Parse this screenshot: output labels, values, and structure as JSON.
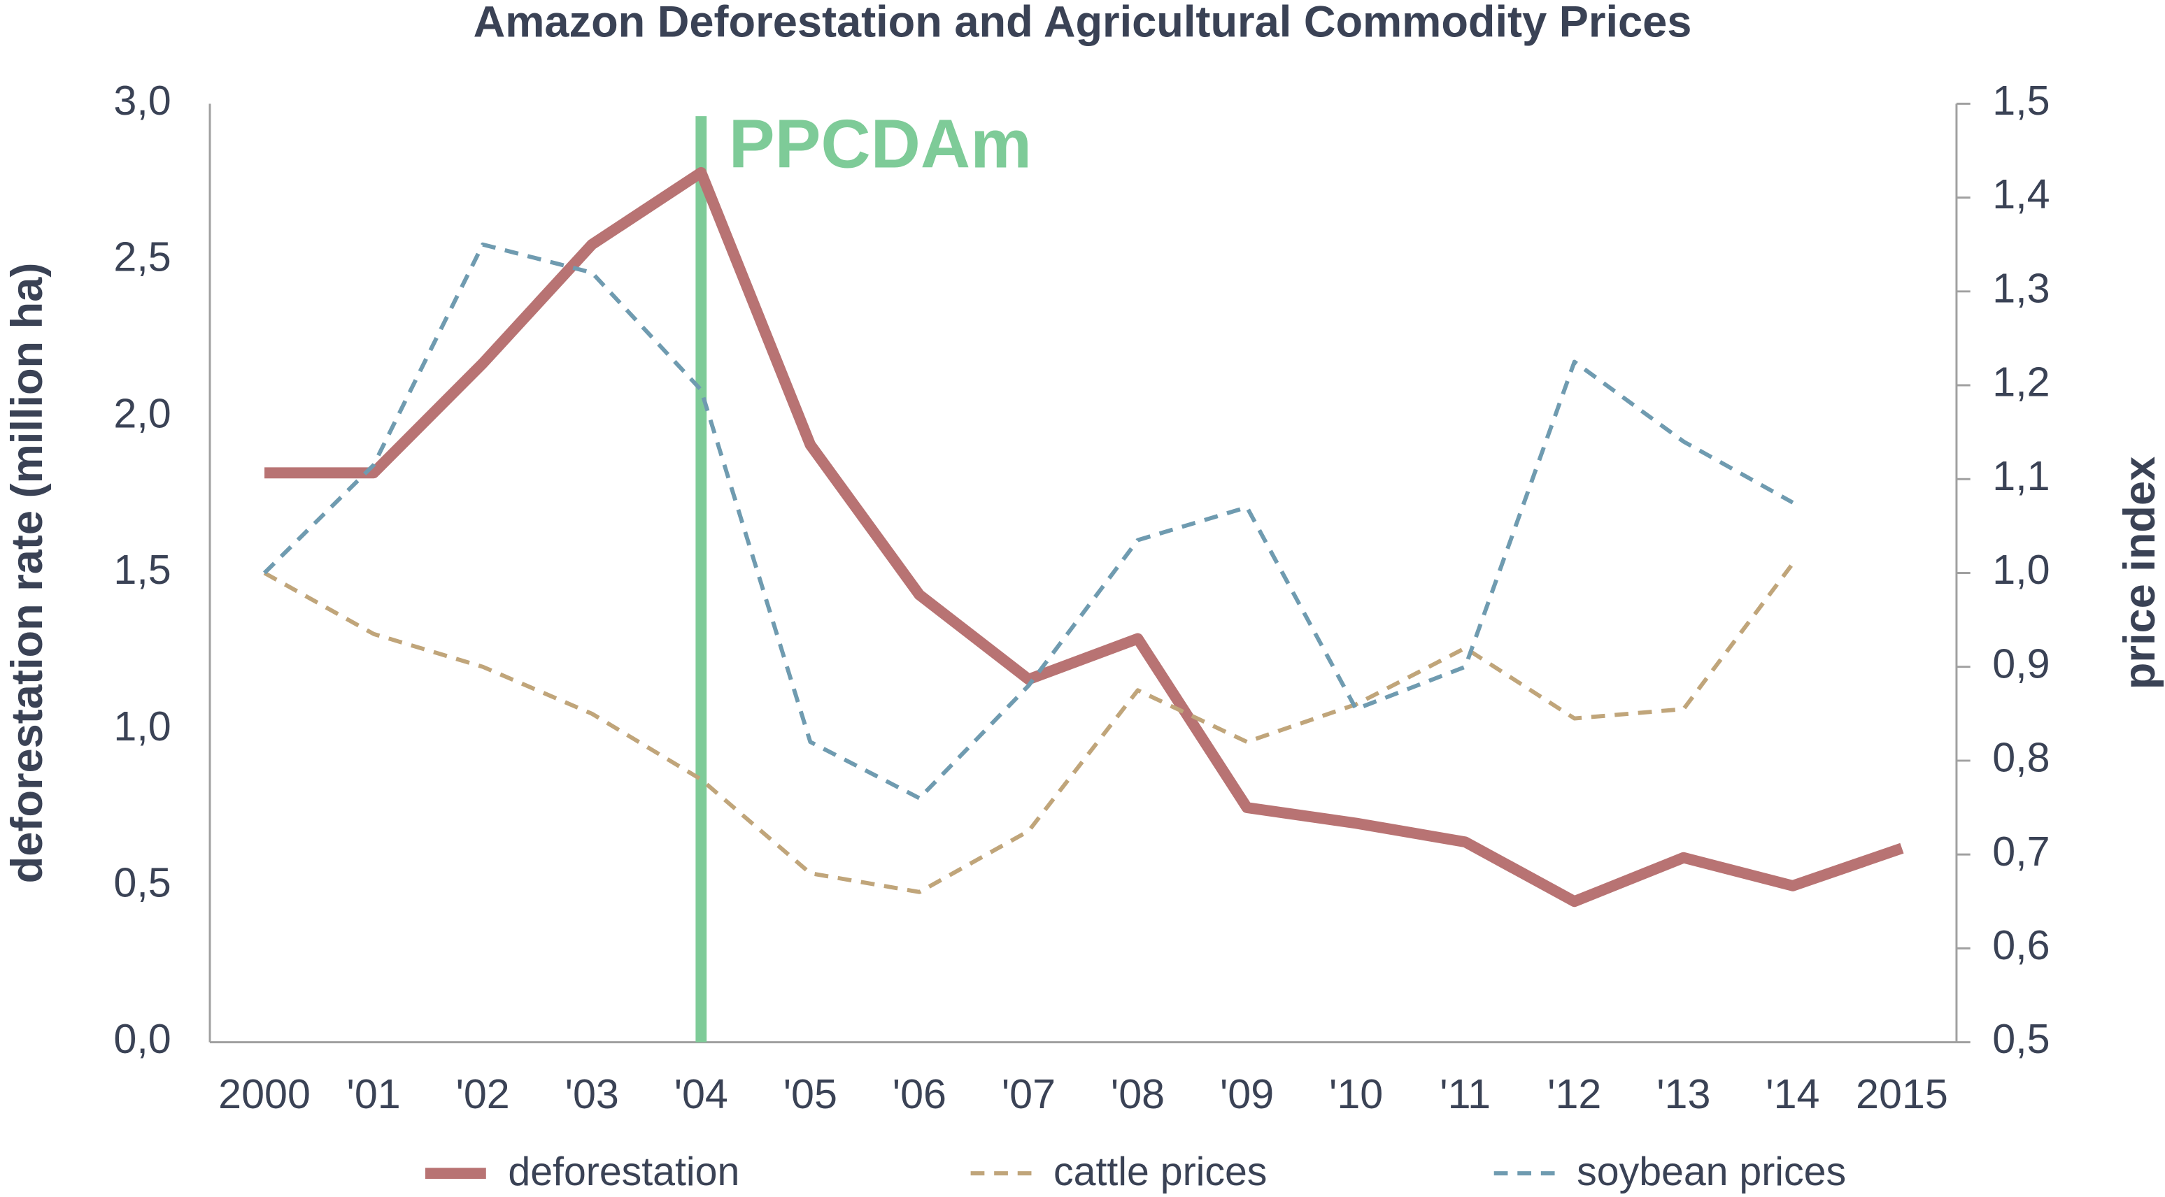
{
  "chart_data": {
    "type": "line",
    "title": "Amazon Deforestation and Agricultural Commodity Prices",
    "ylabel": "deforestation rate (million ha)",
    "y2label": "price index",
    "categories": [
      "2000",
      "'01",
      "'02",
      "'03",
      "'04",
      "'05",
      "'06",
      "'07",
      "'08",
      "'09",
      "'10",
      "'11",
      "'12",
      "'13",
      "'14",
      "2015"
    ],
    "series": [
      {
        "name": "deforestation",
        "color": "#b87373",
        "style": "solid",
        "values": [
          1.82,
          1.82,
          2.17,
          2.55,
          2.78,
          1.91,
          1.43,
          1.16,
          1.29,
          0.75,
          0.7,
          0.64,
          0.45,
          0.59,
          0.5,
          0.62
        ]
      },
      {
        "name": "cattle prices",
        "color": "#c0a57a",
        "style": "dashed",
        "axis": "y2",
        "values": [
          1.0,
          0.935,
          0.9,
          0.85,
          0.78,
          0.68,
          0.66,
          0.725,
          0.875,
          0.82,
          0.86,
          0.92,
          0.845,
          0.855,
          1.01,
          null
        ]
      },
      {
        "name": "soybean prices",
        "color": "#6f9bb0",
        "style": "dashed",
        "axis": "y2",
        "values": [
          1.0,
          1.115,
          1.35,
          1.32,
          1.195,
          0.82,
          0.76,
          0.88,
          1.035,
          1.07,
          0.855,
          0.9,
          1.225,
          1.14,
          1.075,
          null
        ]
      }
    ],
    "ylim": [
      0,
      3
    ],
    "yticks": [
      {
        "value": 0,
        "label": "0,0"
      },
      {
        "value": 0.5,
        "label": "0,5"
      },
      {
        "value": 1,
        "label": "1,0"
      },
      {
        "value": 1.5,
        "label": "1,5"
      },
      {
        "value": 2,
        "label": "2,0"
      },
      {
        "value": 2.5,
        "label": "2,5"
      },
      {
        "value": 3,
        "label": "3,0"
      }
    ],
    "y2lim": [
      0.5,
      1.5
    ],
    "y2ticks": [
      {
        "value": 0.5,
        "label": "0,5"
      },
      {
        "value": 0.6,
        "label": "0,6"
      },
      {
        "value": 0.7,
        "label": "0,7"
      },
      {
        "value": 0.8,
        "label": "0,8"
      },
      {
        "value": 0.9,
        "label": "0,9"
      },
      {
        "value": 1,
        "label": "1,0"
      },
      {
        "value": 1.1,
        "label": "1,1"
      },
      {
        "value": 1.2,
        "label": "1,2"
      },
      {
        "value": 1.3,
        "label": "1,3"
      },
      {
        "value": 1.4,
        "label": "1,4"
      },
      {
        "value": 1.5,
        "label": "1,5"
      }
    ],
    "annotations": [
      {
        "text": "PPCDAm",
        "x": "'04",
        "color": "#7ecb98"
      }
    ],
    "grid": false,
    "legend": "bottom"
  }
}
